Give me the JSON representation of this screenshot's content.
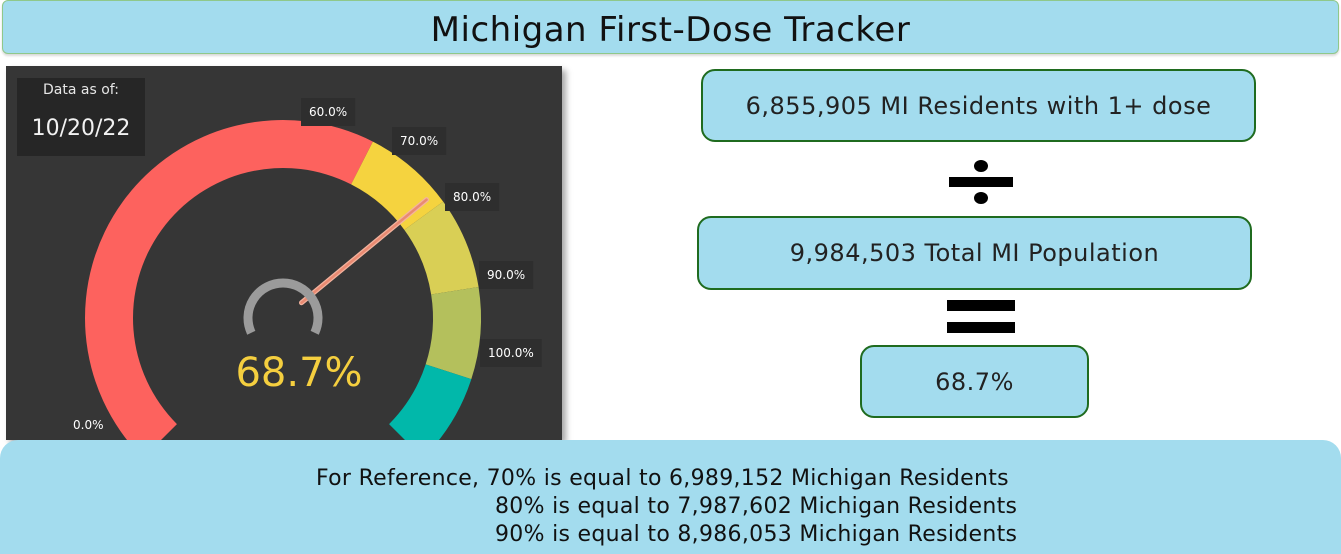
{
  "title": "Michigan First-Dose Tracker",
  "date_card": {
    "label": "Data as of:",
    "value": "10/20/22"
  },
  "gauge": {
    "value_percent": 68.7,
    "value_label": "68.7%",
    "min": 0,
    "max": 100,
    "bands": [
      {
        "from": 0,
        "to": 60,
        "color": "#fd625e"
      },
      {
        "from": 60,
        "to": 70,
        "color": "#f5d33f"
      },
      {
        "from": 70,
        "to": 80,
        "color": "#d9cf55"
      },
      {
        "from": 80,
        "to": 90,
        "color": "#b4c05c"
      },
      {
        "from": 90,
        "to": 100,
        "color": "#01b8aa"
      }
    ],
    "tick_labels": [
      "0.0%",
      "60.0%",
      "70.0%",
      "80.0%",
      "90.0%",
      "100.0%"
    ],
    "needle_color": "#e98a72",
    "hub_color": "#9b9b9b"
  },
  "calculation": {
    "residents_with_dose": "6,855,905 MI Residents with 1+ dose",
    "total_population": "9,984,503 Total MI Population",
    "result": "68.7%"
  },
  "reference": {
    "line1": "For Reference, 70% is equal to 6,989,152 Michigan Residents",
    "line2": "80% is equal to 7,987,602 Michigan Residents",
    "line3": "90% is equal to 8,986,053 Michigan Residents"
  }
}
